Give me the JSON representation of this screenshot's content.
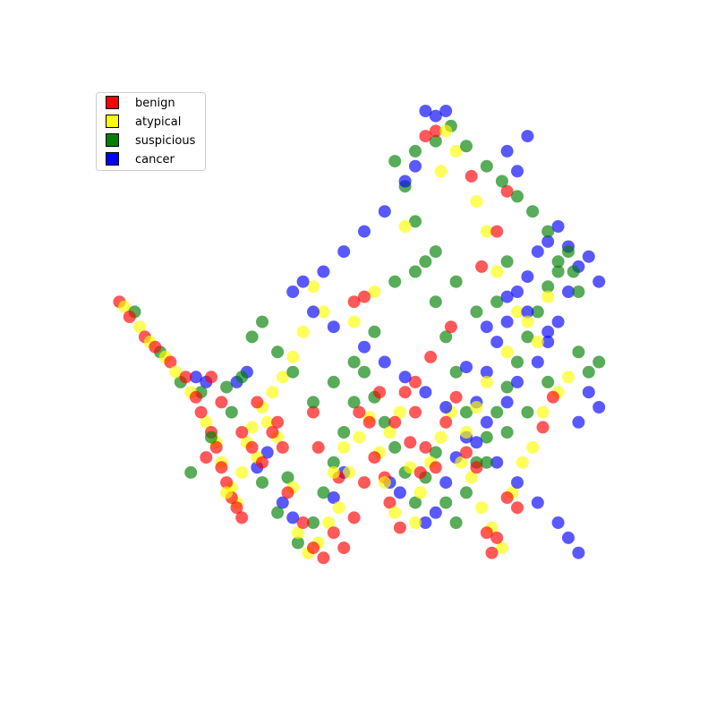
{
  "chart_data": {
    "type": "scatter",
    "title": "",
    "xlabel": "",
    "ylabel": "",
    "axes_visible": false,
    "grid": false,
    "legend_position": "top-left",
    "xlim": [
      0,
      100
    ],
    "ylim": [
      0,
      100
    ],
    "point_alpha": 0.65,
    "series": [
      {
        "name": "benign",
        "color": "#ff0000",
        "points": [
          [
            2,
            62
          ],
          [
            4,
            59
          ],
          [
            7,
            55
          ],
          [
            9,
            53
          ],
          [
            12,
            50
          ],
          [
            15,
            47
          ],
          [
            17,
            43
          ],
          [
            18,
            40
          ],
          [
            20,
            36
          ],
          [
            21,
            33
          ],
          [
            22,
            29
          ],
          [
            23,
            26
          ],
          [
            24,
            23
          ],
          [
            25,
            21
          ],
          [
            26,
            19
          ],
          [
            28,
            33
          ],
          [
            30,
            30
          ],
          [
            32,
            36
          ],
          [
            34,
            33
          ],
          [
            35,
            24
          ],
          [
            38,
            18
          ],
          [
            40,
            13
          ],
          [
            42,
            11
          ],
          [
            44,
            16
          ],
          [
            46,
            13
          ],
          [
            48,
            19
          ],
          [
            50,
            26
          ],
          [
            52,
            31
          ],
          [
            54,
            27
          ],
          [
            56,
            38
          ],
          [
            58,
            44
          ],
          [
            60,
            40
          ],
          [
            62,
            33
          ],
          [
            64,
            29
          ],
          [
            66,
            38
          ],
          [
            68,
            43
          ],
          [
            70,
            32
          ],
          [
            72,
            29
          ],
          [
            74,
            16
          ],
          [
            75,
            12
          ],
          [
            76,
            15
          ],
          [
            78,
            23
          ],
          [
            80,
            21
          ],
          [
            85,
            37
          ],
          [
            87,
            43
          ],
          [
            40,
            40
          ],
          [
            41,
            33
          ],
          [
            45,
            27
          ],
          [
            55,
            22
          ],
          [
            57,
            17
          ],
          [
            60,
            46
          ],
          [
            63,
            51
          ],
          [
            67,
            57
          ],
          [
            73,
            69
          ],
          [
            76,
            76
          ],
          [
            78,
            84
          ],
          [
            71,
            87
          ],
          [
            62,
            95
          ],
          [
            64,
            96
          ],
          [
            50,
            63
          ],
          [
            48,
            62
          ],
          [
            20,
            47
          ],
          [
            22,
            42
          ],
          [
            19,
            31
          ],
          [
            26,
            36
          ],
          [
            29,
            42
          ],
          [
            33,
            38
          ],
          [
            49,
            40
          ],
          [
            51,
            38
          ],
          [
            53,
            44
          ],
          [
            59,
            34
          ],
          [
            61,
            28
          ]
        ]
      },
      {
        "name": "atypical",
        "color": "#ffff00",
        "points": [
          [
            3,
            61
          ],
          [
            6,
            57
          ],
          [
            8,
            54
          ],
          [
            11,
            51
          ],
          [
            13,
            48
          ],
          [
            16,
            44
          ],
          [
            19,
            38
          ],
          [
            21,
            34
          ],
          [
            22,
            30
          ],
          [
            24,
            25
          ],
          [
            25,
            22
          ],
          [
            27,
            34
          ],
          [
            29,
            31
          ],
          [
            31,
            38
          ],
          [
            33,
            35
          ],
          [
            36,
            25
          ],
          [
            37,
            16
          ],
          [
            39,
            12
          ],
          [
            41,
            14
          ],
          [
            43,
            18
          ],
          [
            45,
            21
          ],
          [
            47,
            28
          ],
          [
            49,
            35
          ],
          [
            51,
            39
          ],
          [
            53,
            32
          ],
          [
            55,
            36
          ],
          [
            57,
            40
          ],
          [
            59,
            29
          ],
          [
            61,
            24
          ],
          [
            63,
            30
          ],
          [
            65,
            35
          ],
          [
            67,
            40
          ],
          [
            69,
            30
          ],
          [
            71,
            27
          ],
          [
            73,
            21
          ],
          [
            75,
            17
          ],
          [
            77,
            13
          ],
          [
            79,
            24
          ],
          [
            81,
            30
          ],
          [
            83,
            33
          ],
          [
            85,
            40
          ],
          [
            88,
            44
          ],
          [
            90,
            47
          ],
          [
            84,
            54
          ],
          [
            80,
            60
          ],
          [
            76,
            68
          ],
          [
            74,
            76
          ],
          [
            72,
            82
          ],
          [
            68,
            92
          ],
          [
            65,
            88
          ],
          [
            58,
            77
          ],
          [
            52,
            64
          ],
          [
            48,
            58
          ],
          [
            42,
            60
          ],
          [
            40,
            65
          ],
          [
            38,
            56
          ],
          [
            36,
            51
          ],
          [
            34,
            47
          ],
          [
            32,
            44
          ],
          [
            30,
            41
          ],
          [
            28,
            37
          ],
          [
            26,
            28
          ],
          [
            23,
            24
          ],
          [
            44,
            28
          ],
          [
            46,
            33
          ],
          [
            54,
            26
          ],
          [
            56,
            20
          ],
          [
            60,
            18
          ],
          [
            70,
            36
          ],
          [
            72,
            41
          ],
          [
            74,
            46
          ],
          [
            78,
            52
          ],
          [
            82,
            58
          ],
          [
            86,
            63
          ],
          [
            66,
            96
          ]
        ]
      },
      {
        "name": "suspicious",
        "color": "#008000",
        "points": [
          [
            5,
            60
          ],
          [
            10,
            52
          ],
          [
            14,
            46
          ],
          [
            18,
            44
          ],
          [
            23,
            45
          ],
          [
            26,
            47
          ],
          [
            30,
            26
          ],
          [
            33,
            20
          ],
          [
            35,
            27
          ],
          [
            37,
            14
          ],
          [
            40,
            18
          ],
          [
            42,
            24
          ],
          [
            44,
            30
          ],
          [
            46,
            36
          ],
          [
            48,
            42
          ],
          [
            50,
            48
          ],
          [
            52,
            43
          ],
          [
            54,
            38
          ],
          [
            56,
            33
          ],
          [
            58,
            28
          ],
          [
            60,
            22
          ],
          [
            62,
            27
          ],
          [
            64,
            32
          ],
          [
            66,
            22
          ],
          [
            68,
            18
          ],
          [
            70,
            24
          ],
          [
            72,
            30
          ],
          [
            74,
            35
          ],
          [
            76,
            40
          ],
          [
            78,
            45
          ],
          [
            80,
            50
          ],
          [
            82,
            55
          ],
          [
            84,
            60
          ],
          [
            86,
            65
          ],
          [
            88,
            68
          ],
          [
            90,
            72
          ],
          [
            92,
            52
          ],
          [
            94,
            48
          ],
          [
            96,
            50
          ],
          [
            86,
            46
          ],
          [
            82,
            40
          ],
          [
            78,
            36
          ],
          [
            74,
            30
          ],
          [
            70,
            40
          ],
          [
            68,
            48
          ],
          [
            66,
            55
          ],
          [
            64,
            62
          ],
          [
            62,
            70
          ],
          [
            60,
            78
          ],
          [
            58,
            85
          ],
          [
            56,
            90
          ],
          [
            60,
            92
          ],
          [
            64,
            94
          ],
          [
            67,
            97
          ],
          [
            70,
            93
          ],
          [
            74,
            89
          ],
          [
            77,
            86
          ],
          [
            80,
            83
          ],
          [
            83,
            80
          ],
          [
            86,
            76
          ],
          [
            88,
            70
          ],
          [
            91,
            68
          ],
          [
            92,
            64
          ],
          [
            78,
            70
          ],
          [
            76,
            62
          ],
          [
            72,
            60
          ],
          [
            68,
            66
          ],
          [
            64,
            72
          ],
          [
            60,
            68
          ],
          [
            56,
            66
          ],
          [
            52,
            56
          ],
          [
            48,
            50
          ],
          [
            44,
            46
          ],
          [
            40,
            42
          ],
          [
            36,
            48
          ],
          [
            33,
            52
          ],
          [
            30,
            58
          ],
          [
            28,
            55
          ],
          [
            24,
            40
          ],
          [
            20,
            35
          ],
          [
            16,
            28
          ]
        ]
      },
      {
        "name": "cancer",
        "color": "#0000ff",
        "points": [
          [
            17,
            47
          ],
          [
            19,
            46
          ],
          [
            25,
            46
          ],
          [
            27,
            48
          ],
          [
            29,
            29
          ],
          [
            31,
            32
          ],
          [
            34,
            22
          ],
          [
            36,
            19
          ],
          [
            44,
            23
          ],
          [
            46,
            28
          ],
          [
            55,
            26
          ],
          [
            57,
            24
          ],
          [
            62,
            18
          ],
          [
            64,
            20
          ],
          [
            66,
            26
          ],
          [
            68,
            31
          ],
          [
            70,
            35
          ],
          [
            72,
            42
          ],
          [
            74,
            48
          ],
          [
            76,
            54
          ],
          [
            78,
            58
          ],
          [
            80,
            64
          ],
          [
            82,
            67
          ],
          [
            84,
            72
          ],
          [
            86,
            74
          ],
          [
            88,
            77
          ],
          [
            90,
            73
          ],
          [
            92,
            69
          ],
          [
            94,
            71
          ],
          [
            96,
            66
          ],
          [
            90,
            64
          ],
          [
            88,
            58
          ],
          [
            86,
            54
          ],
          [
            84,
            50
          ],
          [
            80,
            46
          ],
          [
            78,
            42
          ],
          [
            74,
            38
          ],
          [
            72,
            34
          ],
          [
            76,
            30
          ],
          [
            80,
            26
          ],
          [
            84,
            22
          ],
          [
            88,
            18
          ],
          [
            90,
            15
          ],
          [
            92,
            12
          ],
          [
            94,
            44
          ],
          [
            96,
            41
          ],
          [
            92,
            38
          ],
          [
            80,
            88
          ],
          [
            78,
            92
          ],
          [
            82,
            95
          ],
          [
            62,
            100
          ],
          [
            64,
            99
          ],
          [
            66,
            100
          ],
          [
            58,
            86
          ],
          [
            60,
            89
          ],
          [
            54,
            80
          ],
          [
            50,
            76
          ],
          [
            46,
            72
          ],
          [
            42,
            68
          ],
          [
            38,
            66
          ],
          [
            36,
            64
          ],
          [
            40,
            60
          ],
          [
            44,
            57
          ],
          [
            50,
            53
          ],
          [
            54,
            50
          ],
          [
            58,
            47
          ],
          [
            62,
            44
          ],
          [
            66,
            41
          ],
          [
            70,
            49
          ],
          [
            74,
            57
          ],
          [
            78,
            63
          ],
          [
            82,
            60
          ],
          [
            86,
            56
          ]
        ]
      }
    ]
  }
}
